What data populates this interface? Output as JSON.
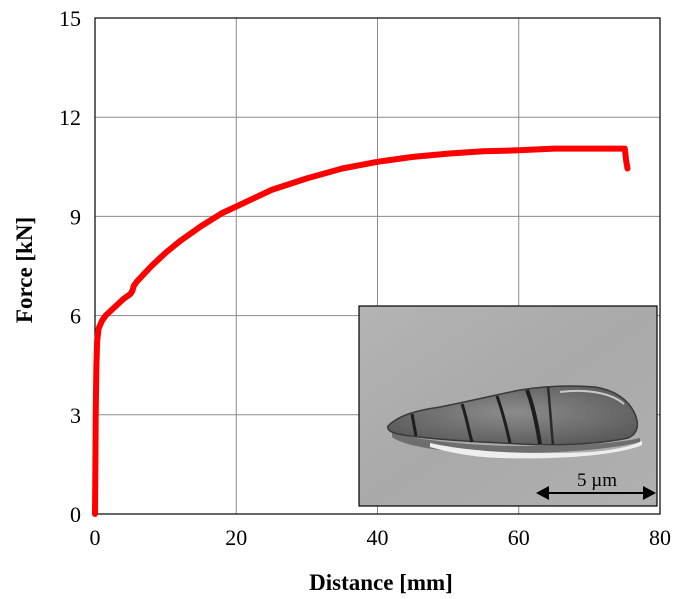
{
  "chart_data": {
    "type": "line",
    "title": "",
    "xlabel": "Distance [mm]",
    "ylabel": "Force [kN]",
    "xlim": [
      0,
      80
    ],
    "ylim": [
      0,
      15
    ],
    "x_ticks": [
      0,
      20,
      40,
      60,
      80
    ],
    "y_ticks": [
      0,
      3,
      6,
      9,
      12,
      15
    ],
    "grid": true,
    "legend": "none",
    "series": [
      {
        "color": "#ff0000",
        "x": [
          0,
          0.05,
          0.1,
          0.2,
          0.3,
          0.5,
          1,
          1.5,
          2,
          3,
          4,
          5,
          5.3,
          5.5,
          6,
          8,
          10,
          12,
          15,
          18,
          20,
          25,
          30,
          35,
          40,
          45,
          50,
          55,
          60,
          65,
          70,
          73,
          75,
          75.1,
          75.2,
          75.4
        ],
        "y": [
          0,
          1.5,
          3.0,
          4.5,
          5.2,
          5.6,
          5.85,
          6.0,
          6.1,
          6.3,
          6.5,
          6.65,
          6.75,
          6.9,
          7.05,
          7.5,
          7.9,
          8.25,
          8.7,
          9.1,
          9.3,
          9.8,
          10.15,
          10.45,
          10.65,
          10.8,
          10.9,
          10.97,
          11.0,
          11.05,
          11.05,
          11.05,
          11.05,
          10.9,
          10.7,
          10.45
        ]
      }
    ],
    "inset": {
      "type": "micrograph",
      "scale_bar_label": "5 µm"
    }
  }
}
